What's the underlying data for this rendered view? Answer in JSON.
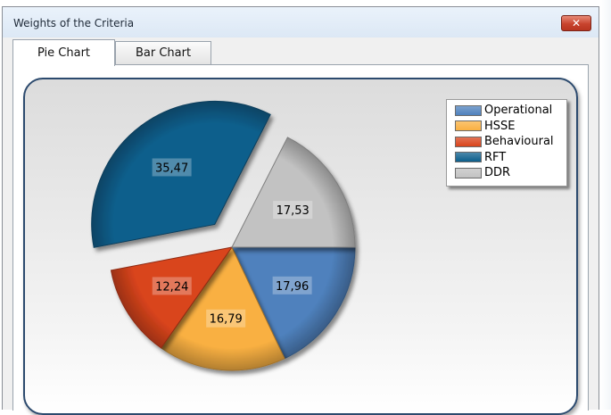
{
  "window": {
    "title": "Weights of the Criteria",
    "close_glyph": "✕",
    "close_icon": "close-icon"
  },
  "tabs": [
    {
      "label": "Pie Chart",
      "active": true
    },
    {
      "label": "Bar Chart",
      "active": false
    }
  ],
  "colors": {
    "window_bg": "#f0f0f0",
    "chart_border": "#2c4a6e",
    "close_button": "#c8432e"
  },
  "chart_data": {
    "type": "pie",
    "slices": [
      {
        "label": "Operational",
        "value": 17.96,
        "display": "17,96",
        "color": "#4f81bd",
        "exploded": false
      },
      {
        "label": "HSSE",
        "value": 16.79,
        "display": "16,79",
        "color": "#f9b042",
        "exploded": false
      },
      {
        "label": "Behavioural",
        "value": 12.24,
        "display": "12,24",
        "color": "#d9441c",
        "exploded": false
      },
      {
        "label": "RFT",
        "value": 35.47,
        "display": "35,47",
        "color": "#0d5f8c",
        "exploded": true
      },
      {
        "label": "DDR",
        "value": 17.53,
        "display": "17,53",
        "color": "#c2c2c2",
        "exploded": false
      }
    ],
    "start": "3 o'clock",
    "direction": "clockwise",
    "legend_position": "top-right",
    "title": ""
  }
}
